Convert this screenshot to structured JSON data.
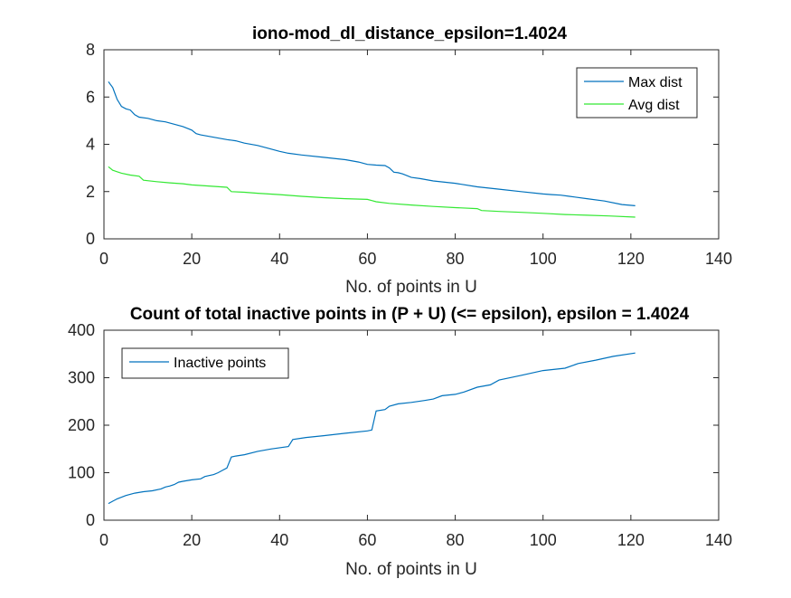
{
  "chart_data": [
    {
      "type": "line",
      "title": "iono-mod_dl_distance_epsilon=1.4024",
      "xlabel": "No. of points in U",
      "ylabel": "",
      "xlim": [
        0,
        140
      ],
      "ylim": [
        0,
        8
      ],
      "xticks": [
        "0",
        "20",
        "40",
        "60",
        "80",
        "100",
        "120",
        "140"
      ],
      "yticks": [
        "0",
        "2",
        "4",
        "6",
        "8"
      ],
      "grid": false,
      "legend_position": "top-right",
      "series": [
        {
          "name": "Max dist",
          "color": "#0072BD",
          "x": [
            1,
            2,
            3,
            4,
            5,
            6,
            7,
            8,
            10,
            12,
            14,
            16,
            18,
            20,
            21,
            22,
            25,
            28,
            30,
            32,
            35,
            38,
            40,
            42,
            45,
            50,
            55,
            58,
            60,
            62,
            64,
            65,
            66,
            67,
            68,
            70,
            72,
            75,
            80,
            85,
            90,
            95,
            100,
            102,
            104,
            106,
            110,
            114,
            118,
            121
          ],
          "y": [
            6.65,
            6.4,
            5.9,
            5.6,
            5.5,
            5.45,
            5.25,
            5.15,
            5.1,
            5.0,
            4.95,
            4.85,
            4.75,
            4.6,
            4.45,
            4.4,
            4.3,
            4.2,
            4.15,
            4.05,
            3.95,
            3.8,
            3.7,
            3.62,
            3.55,
            3.45,
            3.35,
            3.25,
            3.15,
            3.12,
            3.1,
            3.0,
            2.82,
            2.8,
            2.75,
            2.6,
            2.55,
            2.45,
            2.35,
            2.2,
            2.1,
            2.0,
            1.9,
            1.87,
            1.85,
            1.8,
            1.7,
            1.6,
            1.45,
            1.4
          ]
        },
        {
          "name": "Avg dist",
          "color": "#33E833",
          "x": [
            1,
            2,
            4,
            6,
            8,
            9,
            12,
            15,
            18,
            20,
            25,
            28,
            29,
            32,
            35,
            40,
            45,
            50,
            55,
            60,
            61,
            62,
            65,
            70,
            75,
            80,
            85,
            86,
            90,
            95,
            100,
            105,
            110,
            115,
            121
          ],
          "y": [
            3.05,
            2.9,
            2.78,
            2.7,
            2.65,
            2.48,
            2.42,
            2.37,
            2.33,
            2.28,
            2.22,
            2.18,
            2.0,
            1.97,
            1.93,
            1.87,
            1.8,
            1.74,
            1.7,
            1.67,
            1.62,
            1.57,
            1.5,
            1.43,
            1.37,
            1.32,
            1.28,
            1.2,
            1.16,
            1.12,
            1.08,
            1.03,
            1.0,
            0.97,
            0.92
          ]
        }
      ]
    },
    {
      "type": "line",
      "title": "Count of total inactive points in (P + U) (<= epsilon), epsilon = 1.4024",
      "xlabel": "No. of points in U",
      "ylabel": "",
      "xlim": [
        0,
        140
      ],
      "ylim": [
        0,
        400
      ],
      "xticks": [
        "0",
        "20",
        "40",
        "60",
        "80",
        "100",
        "120",
        "140"
      ],
      "yticks": [
        "0",
        "100",
        "200",
        "300",
        "400"
      ],
      "grid": false,
      "legend_position": "top-left",
      "series": [
        {
          "name": "Inactive points",
          "color": "#0072BD",
          "x": [
            1,
            2,
            3,
            5,
            7,
            9,
            11,
            13,
            14,
            15,
            16,
            17,
            18,
            20,
            22,
            23,
            25,
            26,
            27,
            28,
            29,
            30,
            32,
            35,
            38,
            42,
            43,
            46,
            50,
            55,
            60,
            61,
            62,
            64,
            65,
            67,
            70,
            73,
            75,
            77,
            80,
            82,
            85,
            88,
            90,
            95,
            100,
            105,
            108,
            112,
            116,
            121
          ],
          "y": [
            35,
            40,
            45,
            52,
            57,
            60,
            62,
            66,
            70,
            72,
            75,
            80,
            82,
            85,
            87,
            92,
            96,
            100,
            105,
            110,
            133,
            135,
            138,
            145,
            150,
            155,
            170,
            174,
            178,
            183,
            188,
            190,
            230,
            233,
            240,
            245,
            248,
            252,
            255,
            262,
            265,
            270,
            280,
            285,
            295,
            305,
            315,
            320,
            330,
            337,
            345,
            352
          ]
        }
      ]
    }
  ]
}
